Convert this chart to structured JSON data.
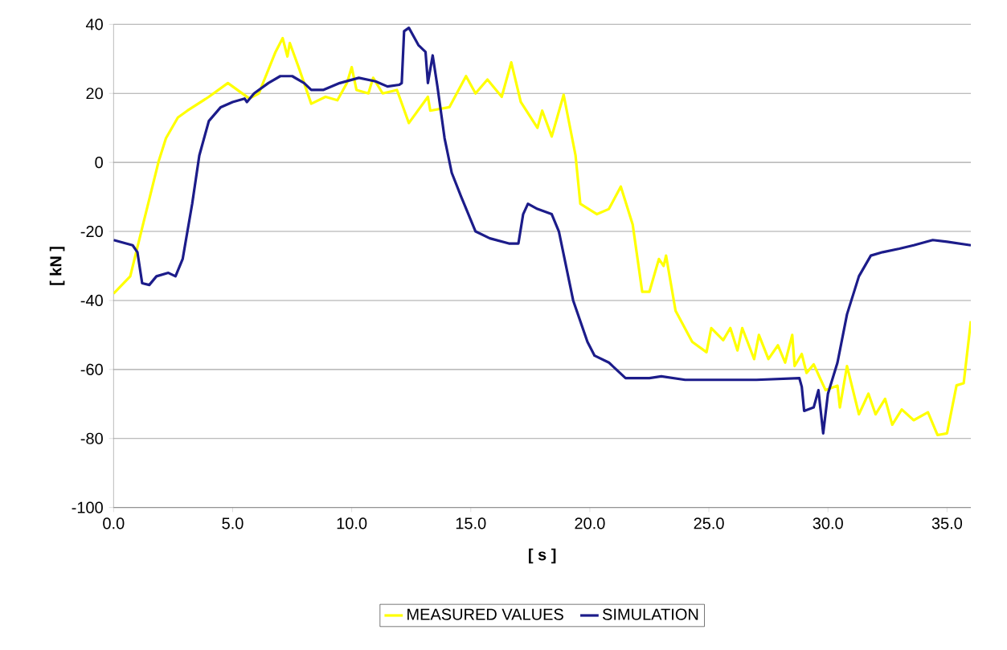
{
  "chart_data": {
    "type": "line",
    "xlabel": "[ s ]",
    "ylabel": "[ kN ]",
    "xlim": [
      0,
      36
    ],
    "ylim": [
      -100,
      40
    ],
    "xticks": [
      {
        "value": 0,
        "label": "0.0"
      },
      {
        "value": 5,
        "label": "5.0"
      },
      {
        "value": 10,
        "label": "10.0"
      },
      {
        "value": 15,
        "label": "15.0"
      },
      {
        "value": 20,
        "label": "20.0"
      },
      {
        "value": 25,
        "label": "25.0"
      },
      {
        "value": 30,
        "label": "30.0"
      },
      {
        "value": 35,
        "label": "35.0"
      }
    ],
    "yticks": [
      -100,
      -80,
      -60,
      -40,
      -20,
      0,
      20,
      40
    ],
    "grid": "y",
    "legend": "bottom",
    "line_style": "solid",
    "marker": "none",
    "series": [
      {
        "name": "MEASURED VALUES",
        "color": "#ffff00",
        "x": [
          0,
          0.7,
          1.2,
          1.9,
          2.2,
          2.7,
          3.1,
          4.0,
          4.8,
          5.7,
          6.1,
          6.8,
          7.1,
          7.3,
          7.4,
          7.8,
          8.3,
          8.9,
          9.4,
          9.8,
          10.0,
          10.2,
          10.7,
          10.9,
          11.3,
          11.9,
          12.4,
          13.2,
          13.3,
          14.1,
          14.8,
          15.2,
          15.7,
          16.3,
          16.7,
          17.1,
          17.8,
          18.0,
          18.4,
          18.9,
          19.4,
          19.6,
          20.3,
          20.8,
          21.3,
          21.8,
          22.2,
          22.5,
          22.9,
          23.1,
          23.2,
          23.6,
          24.3,
          24.9,
          25.1,
          25.6,
          25.9,
          26.2,
          26.4,
          26.9,
          27.1,
          27.5,
          27.9,
          28.2,
          28.5,
          28.6,
          28.9,
          29.1,
          29.4,
          29.9,
          30.4,
          30.5,
          30.8,
          31.3,
          31.7,
          32.0,
          32.4,
          32.7,
          33.1,
          33.6,
          34.2,
          34.6,
          35.0,
          35.4,
          35.7,
          36.0
        ],
        "values": [
          -38,
          -33,
          -19,
          0.5,
          7,
          13,
          15,
          19,
          23,
          18.5,
          20,
          32,
          36,
          30.7,
          34.6,
          27,
          17,
          19,
          18,
          23,
          27.6,
          21,
          20,
          24.5,
          20,
          21,
          11.4,
          19,
          15,
          16,
          25,
          20,
          24,
          19,
          29,
          17.5,
          10,
          15,
          7.5,
          19.6,
          2,
          -12,
          -15,
          -13.5,
          -7,
          -18,
          -37.5,
          -37.5,
          -28,
          -30,
          -27,
          -43,
          -52,
          -55,
          -48,
          -51.5,
          -48,
          -54.5,
          -48,
          -57,
          -50,
          -57,
          -53,
          -58,
          -50,
          -59,
          -55.5,
          -61,
          -58.5,
          -66,
          -64.7,
          -71,
          -59,
          -73,
          -67,
          -73,
          -68.5,
          -76,
          -71.6,
          -74.7,
          -72.4,
          -79,
          -78.5,
          -64.6,
          -64,
          -46
        ]
      },
      {
        "name": "SIMULATION",
        "color": "#1c1c8a",
        "x": [
          0,
          0.8,
          1.0,
          1.2,
          1.5,
          1.8,
          2.3,
          2.6,
          2.9,
          3.3,
          3.6,
          4.0,
          4.5,
          5.0,
          5.5,
          5.6,
          5.9,
          6.5,
          7.0,
          7.5,
          8.0,
          8.3,
          8.8,
          9.5,
          10.3,
          11.0,
          11.5,
          12.0,
          12.1,
          12.2,
          12.4,
          12.8,
          13.1,
          13.2,
          13.4,
          13.6,
          13.9,
          14.2,
          14.6,
          15.2,
          15.8,
          16.6,
          17.0,
          17.2,
          17.4,
          17.8,
          18.4,
          18.7,
          19.3,
          19.9,
          20.2,
          20.8,
          21.5,
          22.5,
          23.0,
          24.0,
          25.5,
          27.0,
          28.8,
          28.9,
          29.0,
          29.4,
          29.6,
          29.8,
          30.0,
          30.4,
          30.8,
          31.3,
          31.8,
          32.3,
          33.0,
          33.6,
          34.4,
          35.0,
          36.0
        ],
        "values": [
          -22.5,
          -24,
          -26,
          -35,
          -35.5,
          -33,
          -32,
          -33,
          -28,
          -12,
          2,
          12,
          16,
          17.5,
          18.5,
          17.5,
          20,
          23,
          25,
          25,
          23,
          21,
          21,
          23,
          24.5,
          23.5,
          22,
          22.5,
          23,
          38,
          39,
          34,
          32,
          23,
          31,
          22,
          7,
          -3,
          -10,
          -20,
          -22,
          -23.5,
          -23.5,
          -15,
          -12,
          -13.5,
          -15,
          -20,
          -40,
          -52,
          -56,
          -58,
          -62.5,
          -62.5,
          -62,
          -63,
          -63,
          -63,
          -62.5,
          -65,
          -72,
          -71,
          -66,
          -78.5,
          -67,
          -58,
          -44,
          -33,
          -27,
          -26,
          -25,
          -24,
          -22.5,
          -23,
          -24
        ]
      }
    ]
  }
}
